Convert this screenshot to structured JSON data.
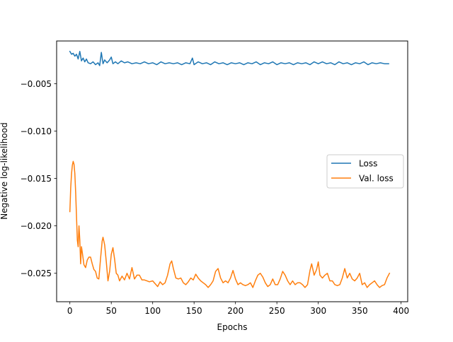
{
  "chart_data": {
    "type": "line",
    "title": "",
    "xlabel": "Epochs",
    "ylabel": "Negative log-likelihood",
    "xlim": [
      -16,
      408
    ],
    "ylim": [
      -0.028,
      -0.0005
    ],
    "xticks": [
      0,
      50,
      100,
      150,
      200,
      250,
      300,
      350,
      400
    ],
    "xtick_labels": [
      "0",
      "50",
      "100",
      "150",
      "200",
      "250",
      "300",
      "350",
      "400"
    ],
    "yticks": [
      -0.025,
      -0.02,
      -0.015,
      -0.01,
      -0.005
    ],
    "ytick_labels": [
      "−0.025",
      "−0.020",
      "−0.015",
      "−0.010",
      "−0.005"
    ],
    "grid": false,
    "legend_position": "center-right",
    "series": [
      {
        "name": "Loss",
        "color": "#1f77b4",
        "points": [
          [
            0,
            -0.0016
          ],
          [
            2,
            -0.0019
          ],
          [
            4,
            -0.0018
          ],
          [
            6,
            -0.0021
          ],
          [
            8,
            -0.0019
          ],
          [
            10,
            -0.0024
          ],
          [
            12,
            -0.0016
          ],
          [
            14,
            -0.0026
          ],
          [
            16,
            -0.0023
          ],
          [
            18,
            -0.0027
          ],
          [
            20,
            -0.0024
          ],
          [
            22,
            -0.0028
          ],
          [
            25,
            -0.0029
          ],
          [
            28,
            -0.0027
          ],
          [
            31,
            -0.003
          ],
          [
            34,
            -0.0028
          ],
          [
            36,
            -0.0031
          ],
          [
            38,
            -0.0017
          ],
          [
            40,
            -0.0029
          ],
          [
            42,
            -0.0025
          ],
          [
            45,
            -0.0028
          ],
          [
            48,
            -0.0025
          ],
          [
            50,
            -0.0022
          ],
          [
            52,
            -0.0029
          ],
          [
            55,
            -0.0027
          ],
          [
            58,
            -0.0029
          ],
          [
            62,
            -0.0026
          ],
          [
            66,
            -0.0028
          ],
          [
            70,
            -0.0027
          ],
          [
            75,
            -0.0029
          ],
          [
            80,
            -0.0028
          ],
          [
            85,
            -0.0029
          ],
          [
            90,
            -0.0027
          ],
          [
            95,
            -0.0029
          ],
          [
            100,
            -0.0028
          ],
          [
            105,
            -0.003
          ],
          [
            110,
            -0.0027
          ],
          [
            115,
            -0.0029
          ],
          [
            120,
            -0.0028
          ],
          [
            125,
            -0.0029
          ],
          [
            130,
            -0.0028
          ],
          [
            135,
            -0.003
          ],
          [
            140,
            -0.0028
          ],
          [
            145,
            -0.0029
          ],
          [
            148,
            -0.0023
          ],
          [
            150,
            -0.003
          ],
          [
            155,
            -0.0027
          ],
          [
            160,
            -0.0029
          ],
          [
            165,
            -0.0028
          ],
          [
            170,
            -0.003
          ],
          [
            175,
            -0.0027
          ],
          [
            180,
            -0.0029
          ],
          [
            185,
            -0.0028
          ],
          [
            190,
            -0.003
          ],
          [
            195,
            -0.0028
          ],
          [
            200,
            -0.0029
          ],
          [
            205,
            -0.0028
          ],
          [
            210,
            -0.003
          ],
          [
            215,
            -0.0028
          ],
          [
            220,
            -0.0029
          ],
          [
            225,
            -0.0027
          ],
          [
            230,
            -0.003
          ],
          [
            235,
            -0.0028
          ],
          [
            240,
            -0.0029
          ],
          [
            245,
            -0.0027
          ],
          [
            250,
            -0.003
          ],
          [
            255,
            -0.0028
          ],
          [
            260,
            -0.0029
          ],
          [
            265,
            -0.0028
          ],
          [
            270,
            -0.003
          ],
          [
            275,
            -0.0028
          ],
          [
            280,
            -0.0029
          ],
          [
            285,
            -0.0028
          ],
          [
            290,
            -0.003
          ],
          [
            295,
            -0.0027
          ],
          [
            300,
            -0.0029
          ],
          [
            305,
            -0.0027
          ],
          [
            310,
            -0.0029
          ],
          [
            315,
            -0.0028
          ],
          [
            320,
            -0.003
          ],
          [
            325,
            -0.0027
          ],
          [
            330,
            -0.0029
          ],
          [
            335,
            -0.0028
          ],
          [
            340,
            -0.003
          ],
          [
            345,
            -0.0028
          ],
          [
            350,
            -0.0029
          ],
          [
            355,
            -0.0027
          ],
          [
            360,
            -0.003
          ],
          [
            365,
            -0.0028
          ],
          [
            370,
            -0.0029
          ],
          [
            375,
            -0.0028
          ],
          [
            380,
            -0.0029
          ],
          [
            385,
            -0.0029
          ]
        ]
      },
      {
        "name": "Val. loss",
        "color": "#ff7f0e",
        "points": [
          [
            0,
            -0.0185
          ],
          [
            1,
            -0.016
          ],
          [
            2,
            -0.0145
          ],
          [
            3,
            -0.0136
          ],
          [
            4,
            -0.0132
          ],
          [
            5,
            -0.0135
          ],
          [
            6,
            -0.0145
          ],
          [
            7,
            -0.0165
          ],
          [
            8,
            -0.019
          ],
          [
            9,
            -0.0215
          ],
          [
            10,
            -0.0222
          ],
          [
            11,
            -0.02
          ],
          [
            12,
            -0.0215
          ],
          [
            13,
            -0.024
          ],
          [
            14,
            -0.0222
          ],
          [
            15,
            -0.0228
          ],
          [
            17,
            -0.0241
          ],
          [
            19,
            -0.0244
          ],
          [
            21,
            -0.0236
          ],
          [
            23,
            -0.0233
          ],
          [
            25,
            -0.0233
          ],
          [
            27,
            -0.024
          ],
          [
            29,
            -0.0246
          ],
          [
            31,
            -0.0248
          ],
          [
            33,
            -0.0255
          ],
          [
            35,
            -0.0256
          ],
          [
            37,
            -0.0235
          ],
          [
            39,
            -0.0216
          ],
          [
            40,
            -0.0212
          ],
          [
            42,
            -0.022
          ],
          [
            44,
            -0.0238
          ],
          [
            46,
            -0.0258
          ],
          [
            48,
            -0.0248
          ],
          [
            50,
            -0.023
          ],
          [
            52,
            -0.0223
          ],
          [
            54,
            -0.0235
          ],
          [
            56,
            -0.025
          ],
          [
            58,
            -0.0252
          ],
          [
            60,
            -0.0258
          ],
          [
            63,
            -0.0253
          ],
          [
            66,
            -0.0257
          ],
          [
            69,
            -0.025
          ],
          [
            72,
            -0.0256
          ],
          [
            75,
            -0.0244
          ],
          [
            78,
            -0.0256
          ],
          [
            81,
            -0.0252
          ],
          [
            84,
            -0.0252
          ],
          [
            87,
            -0.0257
          ],
          [
            90,
            -0.0257
          ],
          [
            93,
            -0.0258
          ],
          [
            96,
            -0.0259
          ],
          [
            100,
            -0.0258
          ],
          [
            103,
            -0.0261
          ],
          [
            106,
            -0.0264
          ],
          [
            109,
            -0.0259
          ],
          [
            112,
            -0.0262
          ],
          [
            115,
            -0.026
          ],
          [
            118,
            -0.0252
          ],
          [
            121,
            -0.024
          ],
          [
            123,
            -0.0237
          ],
          [
            125,
            -0.0245
          ],
          [
            128,
            -0.0255
          ],
          [
            131,
            -0.0256
          ],
          [
            134,
            -0.0255
          ],
          [
            137,
            -0.026
          ],
          [
            140,
            -0.0262
          ],
          [
            143,
            -0.0259
          ],
          [
            146,
            -0.0255
          ],
          [
            149,
            -0.0257
          ],
          [
            152,
            -0.0251
          ],
          [
            155,
            -0.0255
          ],
          [
            158,
            -0.0258
          ],
          [
            161,
            -0.026
          ],
          [
            164,
            -0.0262
          ],
          [
            167,
            -0.0265
          ],
          [
            170,
            -0.0262
          ],
          [
            173,
            -0.0258
          ],
          [
            176,
            -0.0248
          ],
          [
            179,
            -0.0245
          ],
          [
            182,
            -0.0255
          ],
          [
            185,
            -0.026
          ],
          [
            188,
            -0.0258
          ],
          [
            191,
            -0.026
          ],
          [
            194,
            -0.0255
          ],
          [
            197,
            -0.0247
          ],
          [
            200,
            -0.0256
          ],
          [
            203,
            -0.0262
          ],
          [
            206,
            -0.026
          ],
          [
            209,
            -0.0262
          ],
          [
            212,
            -0.0263
          ],
          [
            215,
            -0.0262
          ],
          [
            218,
            -0.026
          ],
          [
            221,
            -0.0265
          ],
          [
            224,
            -0.0258
          ],
          [
            227,
            -0.0252
          ],
          [
            230,
            -0.025
          ],
          [
            233,
            -0.0254
          ],
          [
            236,
            -0.026
          ],
          [
            239,
            -0.0264
          ],
          [
            242,
            -0.0262
          ],
          [
            245,
            -0.0256
          ],
          [
            248,
            -0.0262
          ],
          [
            251,
            -0.0262
          ],
          [
            254,
            -0.0256
          ],
          [
            257,
            -0.0248
          ],
          [
            260,
            -0.0252
          ],
          [
            263,
            -0.0258
          ],
          [
            266,
            -0.0262
          ],
          [
            269,
            -0.0258
          ],
          [
            272,
            -0.0262
          ],
          [
            275,
            -0.026
          ],
          [
            278,
            -0.026
          ],
          [
            281,
            -0.0262
          ],
          [
            284,
            -0.0265
          ],
          [
            287,
            -0.0262
          ],
          [
            290,
            -0.0247
          ],
          [
            292,
            -0.024
          ],
          [
            295,
            -0.0252
          ],
          [
            298,
            -0.0246
          ],
          [
            300,
            -0.0238
          ],
          [
            302,
            -0.0252
          ],
          [
            305,
            -0.0255
          ],
          [
            308,
            -0.0252
          ],
          [
            311,
            -0.025
          ],
          [
            314,
            -0.0258
          ],
          [
            317,
            -0.0258
          ],
          [
            320,
            -0.0262
          ],
          [
            323,
            -0.0263
          ],
          [
            326,
            -0.0262
          ],
          [
            329,
            -0.0255
          ],
          [
            332,
            -0.0245
          ],
          [
            335,
            -0.0255
          ],
          [
            338,
            -0.025
          ],
          [
            341,
            -0.0256
          ],
          [
            344,
            -0.0258
          ],
          [
            347,
            -0.0255
          ],
          [
            350,
            -0.025
          ],
          [
            353,
            -0.0262
          ],
          [
            356,
            -0.026
          ],
          [
            359,
            -0.0265
          ],
          [
            362,
            -0.0262
          ],
          [
            365,
            -0.026
          ],
          [
            368,
            -0.0258
          ],
          [
            371,
            -0.0262
          ],
          [
            374,
            -0.0265
          ],
          [
            377,
            -0.0263
          ],
          [
            380,
            -0.0262
          ],
          [
            383,
            -0.0255
          ],
          [
            386,
            -0.025
          ]
        ]
      }
    ]
  }
}
